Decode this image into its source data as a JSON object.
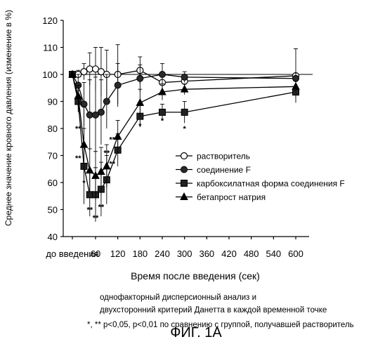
{
  "chart_data": {
    "type": "line",
    "ylabel": "Среднее значение кровного давления (изменение в %)",
    "xlabel": "Время после введения (сек)",
    "ylim": [
      40,
      120
    ],
    "yticks": [
      40,
      50,
      60,
      70,
      80,
      90,
      100,
      110,
      120
    ],
    "xticks": [
      {
        "x": 0,
        "label": "до введения"
      },
      {
        "x": 60,
        "label": "60"
      },
      {
        "x": 120,
        "label": "120"
      },
      {
        "x": 180,
        "label": "180"
      },
      {
        "x": 240,
        "label": "240"
      },
      {
        "x": 300,
        "label": "300"
      },
      {
        "x": 360,
        "label": "360"
      },
      {
        "x": 420,
        "label": "420"
      },
      {
        "x": 480,
        "label": "480"
      },
      {
        "x": 540,
        "label": "540"
      },
      {
        "x": 600,
        "label": "600"
      }
    ],
    "reference_line": 100,
    "series": [
      {
        "name": "растворитель",
        "marker": "circle-open",
        "points": [
          {
            "x": 0,
            "y": 100,
            "err": 0
          },
          {
            "x": 15,
            "y": 100,
            "err": 1.5
          },
          {
            "x": 30,
            "y": 101,
            "err": 3
          },
          {
            "x": 45,
            "y": 102,
            "err": 6
          },
          {
            "x": 60,
            "y": 102,
            "err": 8
          },
          {
            "x": 75,
            "y": 101,
            "err": 9
          },
          {
            "x": 90,
            "y": 100,
            "err": 9
          },
          {
            "x": 120,
            "y": 100,
            "err": 11
          },
          {
            "x": 180,
            "y": 101.5,
            "err": 5
          },
          {
            "x": 240,
            "y": 97,
            "err": 3
          },
          {
            "x": 300,
            "y": 97.5,
            "err": 2
          },
          {
            "x": 600,
            "y": 99.5,
            "err": 10
          }
        ]
      },
      {
        "name": "соединение F",
        "marker": "circle-filled",
        "points": [
          {
            "x": 0,
            "y": 100,
            "err": 0
          },
          {
            "x": 15,
            "y": 96,
            "err": 4
          },
          {
            "x": 30,
            "y": 89,
            "err": 8
          },
          {
            "x": 45,
            "y": 85,
            "err": 13
          },
          {
            "x": 60,
            "y": 85,
            "err": 14
          },
          {
            "x": 75,
            "y": 86,
            "err": 12
          },
          {
            "x": 90,
            "y": 90,
            "err": 10
          },
          {
            "x": 120,
            "y": 96,
            "err": 8
          },
          {
            "x": 180,
            "y": 98.5,
            "err": 5
          },
          {
            "x": 240,
            "y": 100,
            "err": 4
          },
          {
            "x": 300,
            "y": 99,
            "err": 2
          },
          {
            "x": 600,
            "y": 98.5,
            "err": 2
          }
        ]
      },
      {
        "name": "карбоксилатная форма соединения F",
        "marker": "square-filled",
        "points": [
          {
            "x": 0,
            "y": 100,
            "err": 0
          },
          {
            "x": 15,
            "y": 90,
            "err": 4
          },
          {
            "x": 30,
            "y": 66,
            "err": 14
          },
          {
            "x": 45,
            "y": 55.5,
            "err": 8
          },
          {
            "x": 60,
            "y": 55.5,
            "err": 10
          },
          {
            "x": 75,
            "y": 57.5,
            "err": 10
          },
          {
            "x": 90,
            "y": 61,
            "err": 9
          },
          {
            "x": 120,
            "y": 72,
            "err": 6
          },
          {
            "x": 180,
            "y": 84.5,
            "err": 4
          },
          {
            "x": 240,
            "y": 86,
            "err": 3
          },
          {
            "x": 300,
            "y": 86,
            "err": 4
          },
          {
            "x": 600,
            "y": 93.5,
            "err": 2
          }
        ]
      },
      {
        "name": "бетапрост натрия",
        "marker": "triangle-filled",
        "points": [
          {
            "x": 0,
            "y": 100,
            "err": 0
          },
          {
            "x": 15,
            "y": 92,
            "err": 4
          },
          {
            "x": 30,
            "y": 74,
            "err": 14
          },
          {
            "x": 45,
            "y": 64.5,
            "err": 8
          },
          {
            "x": 60,
            "y": 62.5,
            "err": 9
          },
          {
            "x": 75,
            "y": 64,
            "err": 9
          },
          {
            "x": 90,
            "y": 66,
            "err": 8
          },
          {
            "x": 120,
            "y": 77,
            "err": 6
          },
          {
            "x": 180,
            "y": 89.5,
            "err": 5
          },
          {
            "x": 240,
            "y": 93.5,
            "err": 3
          },
          {
            "x": 300,
            "y": 94.5,
            "err": 2
          },
          {
            "x": 600,
            "y": 95.5,
            "err": 2
          }
        ]
      }
    ],
    "annotations": [
      {
        "text": "**",
        "x": 15,
        "y": 79
      },
      {
        "text": "**",
        "x": 15,
        "y": 68
      },
      {
        "text": "*",
        "x": 30,
        "y": 59
      },
      {
        "text": "**",
        "x": 45,
        "y": 49
      },
      {
        "text": "**",
        "x": 60,
        "y": 46
      },
      {
        "text": "**",
        "x": 75,
        "y": 50
      },
      {
        "text": "**",
        "x": 90,
        "y": 70
      },
      {
        "text": "**",
        "x": 105,
        "y": 75
      },
      {
        "text": "**",
        "x": 105,
        "y": 66
      },
      {
        "text": "*",
        "x": 180,
        "y": 80
      },
      {
        "text": "*",
        "x": 240,
        "y": 82
      },
      {
        "text": "*",
        "x": 300,
        "y": 79
      }
    ],
    "legend_position": "right-center"
  },
  "notes": {
    "line1": "однофакторный дисперсионный анализ и",
    "line2": "двухсторонний критерий Данетта в каждой временной точке",
    "line3": "*, ** p<0,05, p<0,01 по сравнению с группой, получавшей растворитель"
  },
  "caption": "ФИГ. 1А"
}
